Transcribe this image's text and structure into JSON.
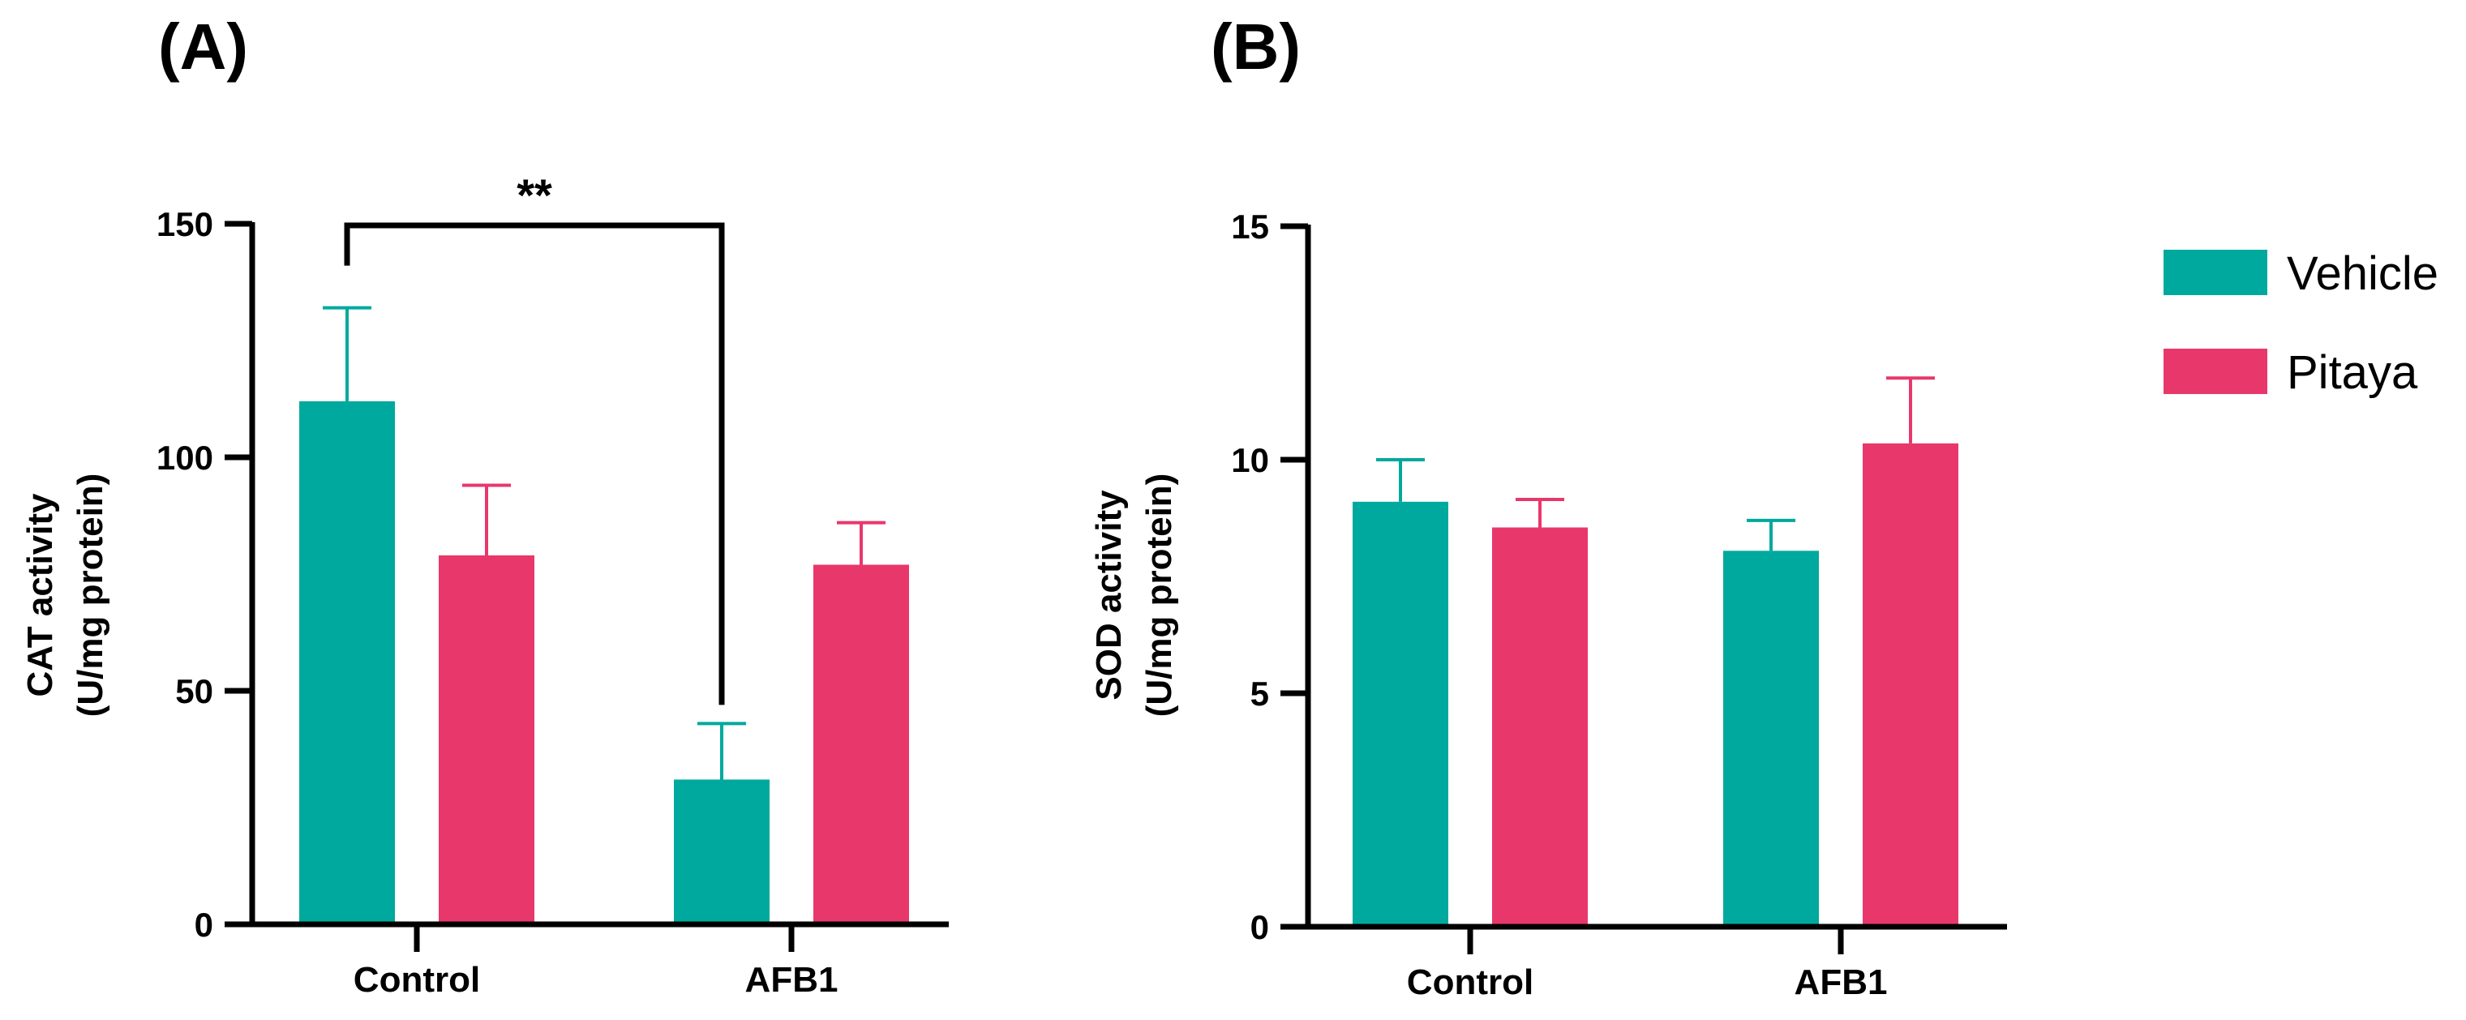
{
  "panel_labels": [
    "(A)",
    "(B)"
  ],
  "legend": {
    "items": [
      {
        "name": "Vehicle",
        "color": "#00A99D"
      },
      {
        "name": "Pitaya",
        "color": "#E8386B"
      }
    ]
  },
  "chart_data": [
    {
      "type": "bar",
      "panel": "(A)",
      "title": "",
      "ylabel_line1": "CAT activity",
      "ylabel_line2": "(U/mg protein)",
      "xlabel": "",
      "categories": [
        "Control",
        "AFB1"
      ],
      "ylim": [
        0,
        150
      ],
      "yticks": [
        0,
        50,
        100,
        150
      ],
      "grid": false,
      "series": [
        {
          "name": "Vehicle",
          "color": "#00A99D",
          "values": [
            112,
            31
          ],
          "errors": [
            20,
            12
          ]
        },
        {
          "name": "Pitaya",
          "color": "#E8386B",
          "values": [
            79,
            77
          ],
          "errors": [
            15,
            9
          ]
        }
      ],
      "significance": [
        {
          "label": "**",
          "from": "Control / Vehicle",
          "to": "AFB1 / Vehicle"
        }
      ]
    },
    {
      "type": "bar",
      "panel": "(B)",
      "title": "",
      "ylabel_line1": "SOD activity",
      "ylabel_line2": "(U/mg protein)",
      "xlabel": "",
      "categories": [
        "Control",
        "AFB1"
      ],
      "ylim": [
        0,
        15
      ],
      "yticks": [
        0,
        5,
        10,
        15
      ],
      "grid": false,
      "series": [
        {
          "name": "Vehicle",
          "color": "#00A99D",
          "values": [
            9.1,
            8.05
          ],
          "errors": [
            0.9,
            0.65
          ]
        },
        {
          "name": "Pitaya",
          "color": "#E8386B",
          "values": [
            8.55,
            10.35
          ],
          "errors": [
            0.6,
            1.4
          ]
        }
      ],
      "significance": []
    }
  ]
}
